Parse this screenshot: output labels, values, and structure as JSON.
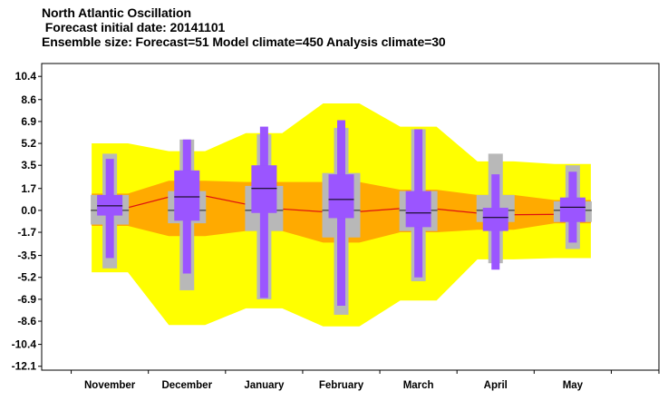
{
  "header": {
    "title": "North Atlantic Oscillation",
    "subtitle": " Forecast initial date: 20141101",
    "ensemble": "Ensemble size: Forecast=51 Model climate=450 Analysis climate=30"
  },
  "chart_data": {
    "type": "box",
    "title": "North Atlantic Oscillation",
    "categories": [
      "November",
      "December",
      "January",
      "February",
      "March",
      "April",
      "May"
    ],
    "yticks": [
      10.4,
      8.6,
      6.9,
      5.2,
      3.5,
      1.7,
      0.0,
      -1.7,
      -3.5,
      -5.2,
      -6.9,
      -8.6,
      -10.4,
      -12.1
    ],
    "ytick_labels": [
      "10.4",
      "8.6",
      "6.9",
      "5.2",
      "3.5",
      "1.7",
      "0.0",
      "-1.7",
      "-3.5",
      "-5.2",
      "-6.9",
      "-8.6",
      "-10.4",
      "-12.1"
    ],
    "ylim": [
      -12.4,
      11.4
    ],
    "analysis_climate": {
      "color": "#ffff00",
      "min": [
        -4.8,
        -8.9,
        -7.6,
        -9.0,
        -7.0,
        -3.8,
        -3.7
      ],
      "max": [
        5.2,
        4.6,
        6.0,
        8.3,
        6.5,
        3.8,
        3.6
      ]
    },
    "model_climate_band": {
      "color": "#ffaa00",
      "lower": [
        -1.2,
        -2.0,
        -1.6,
        -2.5,
        -1.7,
        -1.5,
        -1.0
      ],
      "upper": [
        1.3,
        2.3,
        2.2,
        2.2,
        1.6,
        1.2,
        0.8
      ]
    },
    "model_climate_median": {
      "color": "#dd1111",
      "values": [
        -0.15,
        1.4,
        0.2,
        -0.2,
        0.25,
        -0.35,
        -0.3
      ]
    },
    "model_climate_boxes": {
      "color": "#b8b8b8",
      "whisker_low": [
        -4.5,
        -6.2,
        -6.9,
        -8.1,
        -5.5,
        -4.1,
        -3.0
      ],
      "q1": [
        -1.1,
        -1.0,
        -1.6,
        -2.1,
        -1.6,
        -0.9,
        -0.9
      ],
      "q3": [
        1.2,
        1.5,
        1.9,
        2.9,
        1.5,
        1.2,
        0.7
      ],
      "whisker_high": [
        4.4,
        5.5,
        5.9,
        6.4,
        6.3,
        4.4,
        3.5
      ],
      "median": [
        0.0,
        0.0,
        0.0,
        0.0,
        0.0,
        0.0,
        0.0
      ]
    },
    "forecast_boxes": {
      "color": "#9b55ff",
      "min": [
        -3.7,
        -4.9,
        -6.8,
        -7.4,
        -5.2,
        -4.6,
        -2.5
      ],
      "p25": [
        -0.4,
        -0.8,
        -0.2,
        -0.6,
        -1.3,
        -1.6,
        -0.9
      ],
      "median": [
        0.35,
        1.05,
        1.7,
        0.85,
        -0.2,
        -0.55,
        0.25
      ],
      "p75": [
        1.2,
        3.1,
        3.5,
        2.8,
        1.5,
        0.2,
        1.0
      ],
      "max": [
        4.0,
        5.5,
        6.5,
        7.0,
        6.3,
        2.8,
        3.0
      ]
    }
  }
}
